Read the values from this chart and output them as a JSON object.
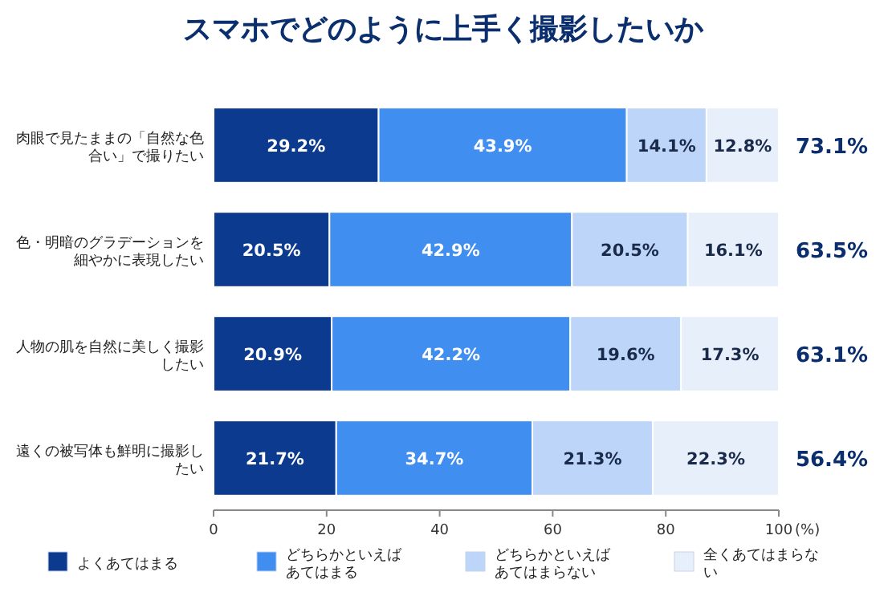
{
  "chart_data": {
    "type": "bar",
    "orientation": "horizontal",
    "stacked": true,
    "title": "スマホでどのように上手く撮影したいか",
    "categories": [
      "肉眼で見たままの「自然な色合い」で撮りたい",
      "色・明暗のグラデーションを細やかに表現したい",
      "人物の肌を自然に美しく撮影したい",
      "遠くの被写体も鮮明に撮影したい"
    ],
    "series": [
      {
        "name": "よくあてはまる",
        "color": "#0b3a8e",
        "values": [
          29.2,
          20.5,
          20.9,
          21.7
        ],
        "value_labels": [
          "29.2%",
          "20.5%",
          "20.9%",
          "21.7%"
        ]
      },
      {
        "name": "どちらかといえばあてはまる",
        "color": "#3f8ef0",
        "values": [
          43.9,
          42.9,
          42.2,
          34.7
        ],
        "value_labels": [
          "43.9%",
          "42.9%",
          "42.2%",
          "34.7%"
        ]
      },
      {
        "name": "どちらかといえばあてはまらない",
        "color": "#bcd5f8",
        "values": [
          14.1,
          20.5,
          19.6,
          21.3
        ],
        "value_labels": [
          "14.1%",
          "20.5%",
          "19.6%",
          "21.3%"
        ]
      },
      {
        "name": "全くあてはまらない",
        "color": "#e7effb",
        "values": [
          12.8,
          16.1,
          17.3,
          22.3
        ],
        "value_labels": [
          "12.8%",
          "16.1%",
          "17.3%",
          "22.3%"
        ]
      }
    ],
    "xlim": [
      0,
      100
    ],
    "xticks": [
      0,
      20,
      40,
      60,
      80,
      100
    ],
    "xlabel": "(%)",
    "legend": "bottom",
    "annotations": [
      "73.1%",
      "63.5%",
      "63.1%",
      "56.4%"
    ]
  }
}
